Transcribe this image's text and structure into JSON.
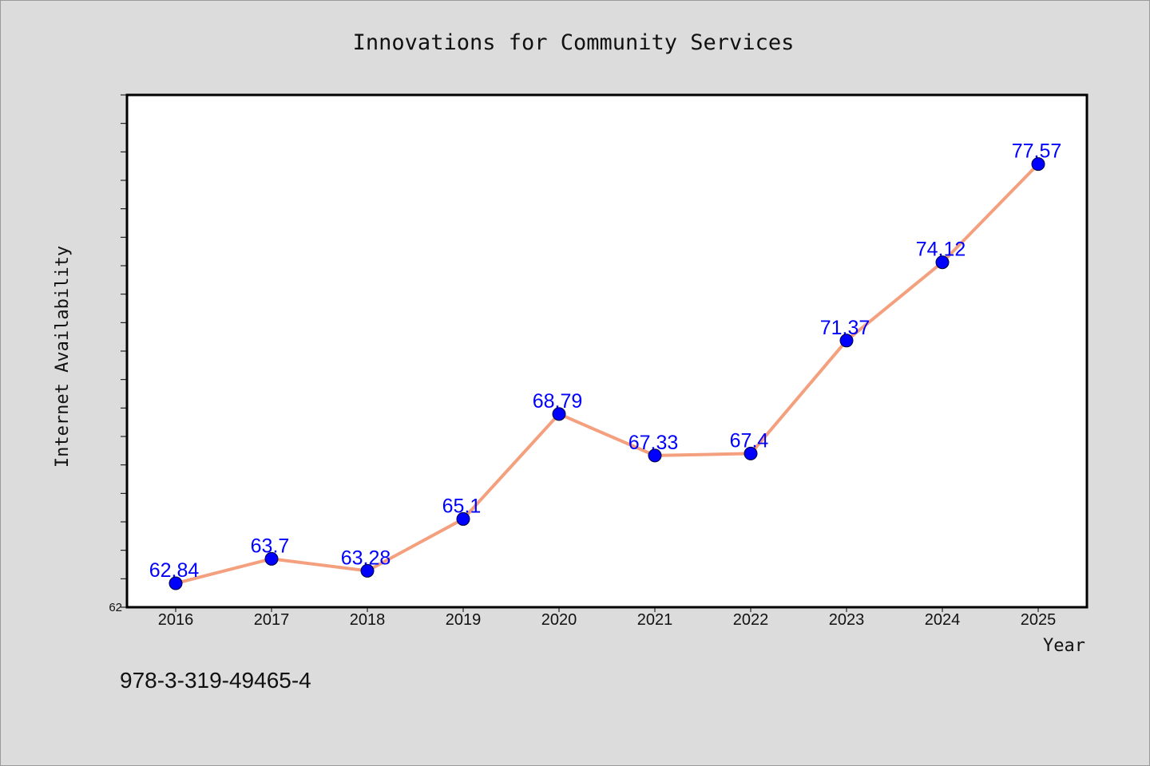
{
  "footer_text": "978-3-319-49465-4",
  "colors": {
    "background": "#dcdcdc",
    "plot_background": "#ffffff",
    "line": "#f4a07e",
    "marker": "#0000ff",
    "data_label": "#0000ff"
  },
  "chart_data": {
    "type": "line",
    "title": "Innovations for Community Services",
    "xlabel": "Year",
    "ylabel": "Internet Availability",
    "categories": [
      "2016",
      "2017",
      "2018",
      "2019",
      "2020",
      "2021",
      "2022",
      "2023",
      "2024",
      "2025"
    ],
    "series": [
      {
        "values": [
          62.84,
          63.7,
          63.28,
          65.1,
          68.79,
          67.33,
          67.4,
          71.37,
          74.12,
          77.57
        ],
        "data_labels": [
          "62.84",
          "63.7",
          "63.28",
          "65.1",
          "68.79",
          "67.33",
          "67.4",
          "71.37",
          "74.12",
          "77.57"
        ]
      }
    ],
    "ylim": [
      62,
      80
    ],
    "y_tick_labels": [
      "62"
    ],
    "y_minor_tick_step": 1,
    "grid": false,
    "legend": "none"
  }
}
